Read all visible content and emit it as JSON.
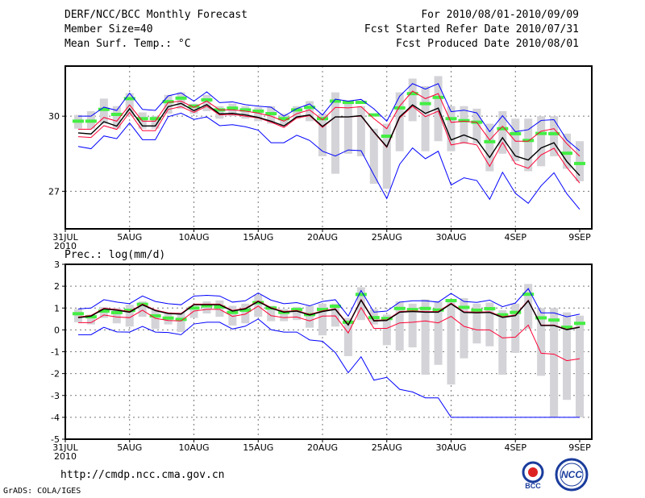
{
  "header": {
    "title": "DERF/NCC/BCC Monthly Forecast",
    "member_size": "Member Size=40",
    "variable": "Mean Surf. Temp.: °C",
    "period": "For 2010/08/01-2010/09/09",
    "started": "Fcst Started Refer Date 2010/07/31",
    "produced": "Fcst Produced Date 2010/08/01"
  },
  "footer": {
    "url": "http://cmdp.ncc.cma.gov.cn",
    "credit": "GrADS: COLA/IGES",
    "logo_left": "BCC",
    "logo_right": "NCC"
  },
  "colors": {
    "max": "#0000ff",
    "min": "#0000ff",
    "upper": "#ff0033",
    "lower": "#ff0033",
    "mean": "#000000",
    "obs": "#44ee44",
    "range": "#d3d3d8"
  },
  "chart_data": [
    {
      "type": "line",
      "title": "Mean Surf. Temp.: °C",
      "x_tick_labels": [
        "31JUL",
        "5AUG",
        "10AUG",
        "15AUG",
        "20AUG",
        "25AUG",
        "30AUG",
        "4SEP",
        "9SEP"
      ],
      "x_tick_days": [
        0,
        5,
        10,
        15,
        20,
        25,
        30,
        35,
        40
      ],
      "x_year_label": "2010",
      "y_ticks": [
        27,
        30
      ],
      "ylim": [
        25.5,
        32
      ],
      "days": [
        1,
        2,
        3,
        4,
        5,
        6,
        7,
        8,
        9,
        10,
        11,
        12,
        13,
        14,
        15,
        16,
        17,
        18,
        19,
        20,
        21,
        22,
        23,
        24,
        25,
        26,
        27,
        28,
        29,
        30,
        31,
        32,
        33,
        34,
        35,
        36,
        37,
        38,
        39,
        40
      ],
      "range_low": [
        29.5,
        29.5,
        29.7,
        29.5,
        30.0,
        29.5,
        29.5,
        30.1,
        30.3,
        30.1,
        30.2,
        29.9,
        30.0,
        29.9,
        29.8,
        29.7,
        29.6,
        29.9,
        29.8,
        28.4,
        27.7,
        28.5,
        28.4,
        27.3,
        27.1,
        28.6,
        29.8,
        28.6,
        29.0,
        28.6,
        28.9,
        28.9,
        27.8,
        28.5,
        28.2,
        27.8,
        28.0,
        28.4,
        27.9,
        27.4
      ],
      "range_high": [
        30.05,
        30.2,
        30.7,
        30.4,
        30.92,
        30.15,
        30.0,
        30.85,
        30.95,
        30.5,
        30.85,
        30.4,
        30.5,
        30.4,
        30.35,
        30.4,
        30.1,
        30.4,
        30.6,
        30.1,
        30.95,
        30.5,
        30.4,
        29.5,
        29.7,
        30.95,
        31.5,
        31.2,
        31.6,
        30.4,
        30.4,
        30.3,
        29.7,
        30.2,
        29.9,
        29.9,
        30.0,
        30.0,
        29.3,
        29.0
      ],
      "series": [
        {
          "name": "max",
          "values": [
            30.0,
            30.0,
            30.36,
            30.23,
            30.92,
            30.27,
            30.23,
            30.81,
            30.93,
            30.6,
            30.97,
            30.54,
            30.57,
            30.46,
            30.4,
            30.36,
            30.0,
            30.3,
            30.49,
            30.05,
            30.68,
            30.6,
            30.67,
            30.29,
            29.8,
            30.8,
            31.3,
            31.08,
            31.3,
            30.18,
            30.24,
            30.13,
            29.38,
            30.02,
            29.38,
            29.46,
            29.83,
            29.86,
            29.05,
            28.62
          ]
        },
        {
          "name": "upper",
          "values": [
            29.48,
            29.48,
            29.95,
            29.8,
            30.45,
            29.8,
            29.8,
            30.55,
            30.6,
            30.35,
            30.6,
            30.25,
            30.25,
            30.2,
            30.12,
            30.0,
            29.8,
            30.1,
            30.25,
            29.85,
            30.35,
            30.33,
            30.38,
            29.9,
            29.5,
            30.4,
            31.0,
            30.7,
            30.9,
            29.75,
            29.8,
            29.75,
            29.05,
            29.6,
            29.0,
            29.0,
            29.4,
            29.5,
            28.9,
            28.4
          ]
        },
        {
          "name": "mean",
          "values": [
            29.33,
            29.29,
            29.78,
            29.6,
            30.3,
            29.61,
            29.61,
            30.38,
            30.51,
            30.22,
            30.46,
            30.09,
            30.11,
            30.05,
            29.95,
            29.8,
            29.61,
            29.97,
            30.05,
            29.59,
            29.97,
            29.97,
            30.02,
            29.37,
            28.78,
            29.97,
            30.45,
            30.11,
            30.32,
            29.05,
            29.25,
            29.05,
            28.35,
            29.14,
            28.41,
            28.25,
            28.73,
            28.94,
            28.19,
            27.63
          ]
        },
        {
          "name": "lower",
          "values": [
            29.18,
            29.15,
            29.62,
            29.47,
            30.15,
            29.42,
            29.42,
            30.27,
            30.38,
            30.15,
            30.4,
            30.05,
            30.07,
            30.0,
            29.93,
            29.76,
            29.55,
            29.93,
            30.02,
            29.55,
            29.97,
            29.97,
            30.0,
            29.35,
            28.75,
            29.93,
            30.4,
            29.98,
            30.2,
            28.85,
            28.95,
            28.85,
            28.0,
            28.95,
            28.1,
            27.92,
            28.45,
            28.72,
            27.95,
            27.33
          ]
        },
        {
          "name": "min",
          "values": [
            28.79,
            28.7,
            29.21,
            29.1,
            29.73,
            29.06,
            29.06,
            29.98,
            30.12,
            29.87,
            29.97,
            29.62,
            29.66,
            29.58,
            29.44,
            28.94,
            28.94,
            29.24,
            29.03,
            28.6,
            28.41,
            28.65,
            28.62,
            27.65,
            26.71,
            28.08,
            28.73,
            28.3,
            28.6,
            27.25,
            27.54,
            27.43,
            26.68,
            27.76,
            26.92,
            26.52,
            27.22,
            27.74,
            26.9,
            26.28
          ]
        },
        {
          "name": "obs",
          "values": [
            29.8,
            29.8,
            30.27,
            30.07,
            30.7,
            29.9,
            29.9,
            30.58,
            30.72,
            30.4,
            30.65,
            30.25,
            30.32,
            30.25,
            30.2,
            30.1,
            29.9,
            30.25,
            30.35,
            29.9,
            30.6,
            30.55,
            30.55,
            30.05,
            29.2,
            30.33,
            30.9,
            30.5,
            30.75,
            29.9,
            29.82,
            29.76,
            28.98,
            29.5,
            29.3,
            29.03,
            29.31,
            29.3,
            28.52,
            28.11
          ]
        }
      ]
    },
    {
      "type": "line",
      "title": "Prec.: log(mm/d)",
      "x_tick_labels": [
        "31JUL",
        "5AUG",
        "10AUG",
        "15AUG",
        "20AUG",
        "25AUG",
        "30AUG",
        "4SEP",
        "9SEP"
      ],
      "x_tick_days": [
        0,
        5,
        10,
        15,
        20,
        25,
        30,
        35,
        40
      ],
      "x_year_label": "2010",
      "y_ticks": [
        -5,
        -4,
        -3,
        -2,
        -1,
        0,
        1,
        2,
        3
      ],
      "ylim": [
        -5,
        3
      ],
      "days": [
        1,
        2,
        3,
        4,
        5,
        6,
        7,
        8,
        9,
        10,
        11,
        12,
        13,
        14,
        15,
        16,
        17,
        18,
        19,
        20,
        21,
        22,
        23,
        24,
        25,
        26,
        27,
        28,
        29,
        30,
        31,
        32,
        33,
        34,
        35,
        36,
        37,
        38,
        39,
        40
      ],
      "range_low": [
        0.35,
        0.25,
        0.55,
        0.3,
        0.15,
        0.6,
        0.05,
        0.25,
        -0.1,
        0.55,
        0.75,
        0.6,
        0.2,
        0.3,
        0.6,
        0.4,
        0.4,
        0.45,
        0.1,
        -0.25,
        0.15,
        -1.2,
        0.45,
        0.25,
        -0.7,
        -0.95,
        -0.8,
        -2.05,
        -1.6,
        -2.5,
        -1.3,
        -0.62,
        -0.75,
        -2.05,
        -1.05,
        0.05,
        -2.1,
        -4.0,
        -3.2,
        -4.0
      ],
      "range_high": [
        0.95,
        0.7,
        1.05,
        1.0,
        1.15,
        1.3,
        0.95,
        0.75,
        0.8,
        1.1,
        1.3,
        1.35,
        1.1,
        1.2,
        1.6,
        1.1,
        0.95,
        1.05,
        1.1,
        1.2,
        1.2,
        0.55,
        1.95,
        0.95,
        0.7,
        1.3,
        1.2,
        1.4,
        1.3,
        1.3,
        1.45,
        1.2,
        1.25,
        0.9,
        1.2,
        2.1,
        1.0,
        1.0,
        0.8,
        0.65
      ],
      "series": [
        {
          "name": "max",
          "values": [
            0.96,
            1.0,
            1.38,
            1.27,
            1.2,
            1.55,
            1.3,
            1.2,
            1.15,
            1.55,
            1.58,
            1.55,
            1.27,
            1.33,
            1.69,
            1.36,
            1.2,
            1.25,
            1.1,
            1.3,
            1.38,
            0.63,
            1.8,
            0.81,
            0.86,
            1.27,
            1.33,
            1.33,
            1.27,
            1.67,
            1.3,
            1.26,
            1.36,
            1.06,
            1.23,
            1.89,
            0.78,
            0.78,
            0.6,
            0.72
          ]
        },
        {
          "name": "upper",
          "values": [
            0.59,
            0.66,
            0.99,
            0.93,
            0.84,
            1.18,
            0.91,
            0.78,
            0.75,
            1.18,
            1.18,
            1.18,
            0.89,
            0.99,
            1.33,
            1.02,
            0.84,
            0.89,
            0.71,
            0.87,
            0.97,
            0.25,
            1.39,
            0.44,
            0.46,
            0.84,
            0.87,
            0.84,
            0.84,
            1.22,
            0.83,
            0.81,
            0.83,
            0.6,
            0.68,
            1.36,
            0.22,
            0.22,
            0.03,
            0.14
          ]
        },
        {
          "name": "mean",
          "values": [
            0.56,
            0.63,
            0.96,
            0.9,
            0.81,
            1.15,
            0.88,
            0.75,
            0.72,
            1.15,
            1.15,
            1.15,
            0.86,
            0.96,
            1.3,
            0.99,
            0.81,
            0.86,
            0.68,
            0.84,
            0.94,
            0.22,
            1.36,
            0.41,
            0.43,
            0.81,
            0.84,
            0.81,
            0.81,
            1.19,
            0.8,
            0.78,
            0.8,
            0.57,
            0.65,
            1.33,
            0.2,
            0.2,
            0.01,
            0.12
          ]
        },
        {
          "name": "lower",
          "values": [
            0.33,
            0.33,
            0.68,
            0.59,
            0.56,
            0.9,
            0.53,
            0.43,
            0.41,
            0.86,
            0.94,
            0.94,
            0.62,
            0.72,
            1.09,
            0.65,
            0.56,
            0.59,
            0.41,
            0.63,
            0.64,
            -0.14,
            1.02,
            0.07,
            0.07,
            0.32,
            0.35,
            0.41,
            0.32,
            0.62,
            0.16,
            0.0,
            0.0,
            -0.37,
            -0.33,
            0.22,
            -1.07,
            -1.11,
            -1.41,
            -1.32
          ]
        },
        {
          "name": "min",
          "values": [
            -0.22,
            -0.22,
            0.12,
            -0.09,
            -0.1,
            0.16,
            -0.1,
            -0.12,
            -0.22,
            0.27,
            0.35,
            0.35,
            0.04,
            0.17,
            0.5,
            0.01,
            -0.1,
            -0.1,
            -0.46,
            -0.52,
            -1.04,
            -1.96,
            -1.23,
            -2.3,
            -2.17,
            -2.72,
            -2.84,
            -3.11,
            -3.11,
            -4.0,
            -4.0,
            -4.0,
            -4.0,
            -4.0,
            -4.0,
            -4.0,
            -4.0,
            -4.0,
            -4.0,
            -4.0
          ]
        },
        {
          "name": "obs",
          "values": [
            0.74,
            0.6,
            0.86,
            0.79,
            0.89,
            1.17,
            0.64,
            0.54,
            0.48,
            1.0,
            1.1,
            1.05,
            0.8,
            0.9,
            1.25,
            1.0,
            0.8,
            0.93,
            0.7,
            0.93,
            1.08,
            0.35,
            1.62,
            0.56,
            0.52,
            0.98,
            0.93,
            0.98,
            0.91,
            1.34,
            1.03,
            0.9,
            0.97,
            0.69,
            0.8,
            1.63,
            0.55,
            0.45,
            0.12,
            0.3
          ]
        }
      ]
    }
  ]
}
